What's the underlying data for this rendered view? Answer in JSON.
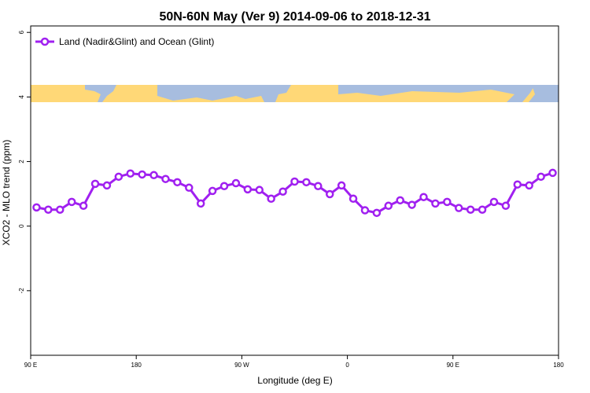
{
  "chart_data": {
    "type": "line",
    "title": "50N-60N May (Ver 9)   2014-09-06 to 2018-12-31",
    "x_label": "Longitude (deg E)",
    "y_label": "XCO2 - MLO trend (ppm)",
    "x": [
      95,
      105,
      115,
      125,
      135,
      145,
      155,
      165,
      175,
      185,
      195,
      205,
      215,
      225,
      235,
      245,
      255,
      265,
      275,
      285,
      295,
      305,
      315,
      325,
      335,
      345,
      355,
      365,
      375,
      385,
      395,
      405,
      415,
      425,
      435,
      445,
      455,
      465,
      475,
      485,
      495,
      505,
      515,
      525,
      535
    ],
    "series": [
      {
        "name": "Land (Nadir&Glint) and Ocean (Glint)",
        "color": "#a020f0",
        "values": [
          0.58,
          0.51,
          0.51,
          0.75,
          0.63,
          1.31,
          1.26,
          1.53,
          1.63,
          1.6,
          1.58,
          1.46,
          1.36,
          1.19,
          0.7,
          1.09,
          1.24,
          1.33,
          1.14,
          1.12,
          0.85,
          1.07,
          1.38,
          1.36,
          1.24,
          0.99,
          1.26,
          0.85,
          0.49,
          0.41,
          0.63,
          0.8,
          0.66,
          0.9,
          0.7,
          0.75,
          0.56,
          0.51,
          0.51,
          0.75,
          0.63,
          1.29,
          1.26,
          1.53,
          1.65
        ]
      }
    ],
    "xlim": [
      90,
      540
    ],
    "xticks": [
      {
        "value": 90,
        "label": "90 E"
      },
      180,
      {
        "value": 270,
        "label": "90 W"
      },
      {
        "value": 360,
        "label": "0"
      },
      {
        "value": 450,
        "label": "90 E"
      },
      {
        "value": 540,
        "label": "180"
      }
    ],
    "ylim": [
      -4,
      6.2
    ],
    "yticks": [
      -2,
      0,
      2,
      4,
      6
    ],
    "legend": "top-left"
  }
}
